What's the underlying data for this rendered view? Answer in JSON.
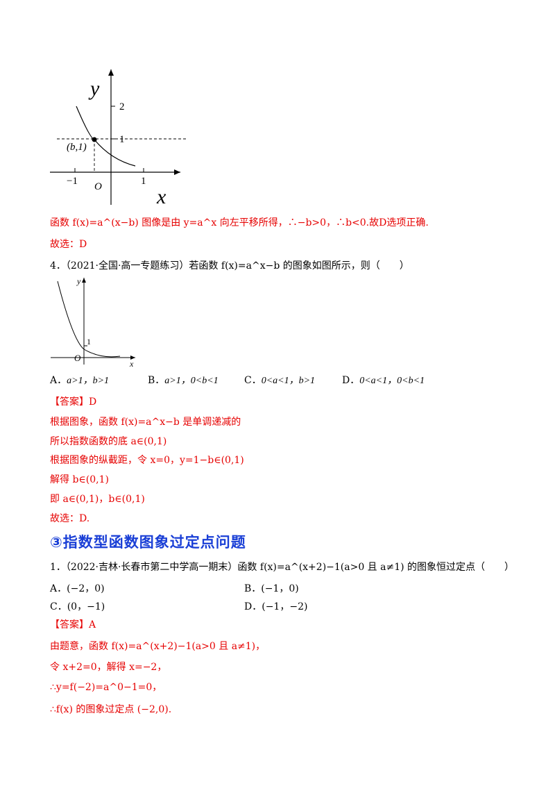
{
  "graph1": {
    "y_label": "y",
    "x_label": "x",
    "tick_y2": "2",
    "tick_y1": "1",
    "point_label": "(b,1)",
    "tick_xm1": "−1",
    "tick_x1": "1",
    "origin": "O"
  },
  "line_explain": "函数 f(x)=a^(x−b) 图像是由 y=a^x 向左平移所得，∴−b>0，∴b<0.故D选项正确.",
  "answer_prev": "故选：D",
  "q4": {
    "stem": "4．（2021·全国·高一专题练习）若函数 f(x)=a^x−b 的图象如图所示，则（　　）",
    "graph": {
      "y_label": "y",
      "x_label": "x",
      "tick_1": "1",
      "origin": "O"
    },
    "options": [
      {
        "label": "A．",
        "text": "a>1，b>1"
      },
      {
        "label": "B．",
        "text": "a>1，0<b<1"
      },
      {
        "label": "C．",
        "text": "0<a<1，b>1"
      },
      {
        "label": "D．",
        "text": "0<a<1，0<b<1"
      }
    ],
    "answer": "【答案】D",
    "sol": [
      "根据图象，函数 f(x)=a^x−b 是单调递减的",
      "所以指数函数的底 a∈(0,1)",
      "根据图象的纵截距，令 x=0，y=1−b∈(0,1)",
      "解得 b∈(0,1)",
      "即 a∈(0,1)，b∈(0,1)",
      "故选：D."
    ]
  },
  "section_title": "③指数型函数图象过定点问题",
  "q1": {
    "stem": "1．（2022·吉林·长春市第二中学高一期末）函数 f(x)=a^(x+2)−1(a>0 且 a≠1) 的图象恒过定点（　　）",
    "options": [
      {
        "label": "A．",
        "text": "(−2，0)"
      },
      {
        "label": "B．",
        "text": "(−1，0)"
      },
      {
        "label": "C．",
        "text": "(0，−1)"
      },
      {
        "label": "D．",
        "text": "(−1，−2)"
      }
    ],
    "answer": "【答案】A",
    "sol": [
      "由题意，函数 f(x)=a^(x+2)−1(a>0 且 a≠1)，",
      "令 x+2=0，解得 x=−2，",
      "∴y=f(−2)=a^0−1=0，",
      "∴f(x) 的图象过定点 (−2,0)."
    ]
  }
}
